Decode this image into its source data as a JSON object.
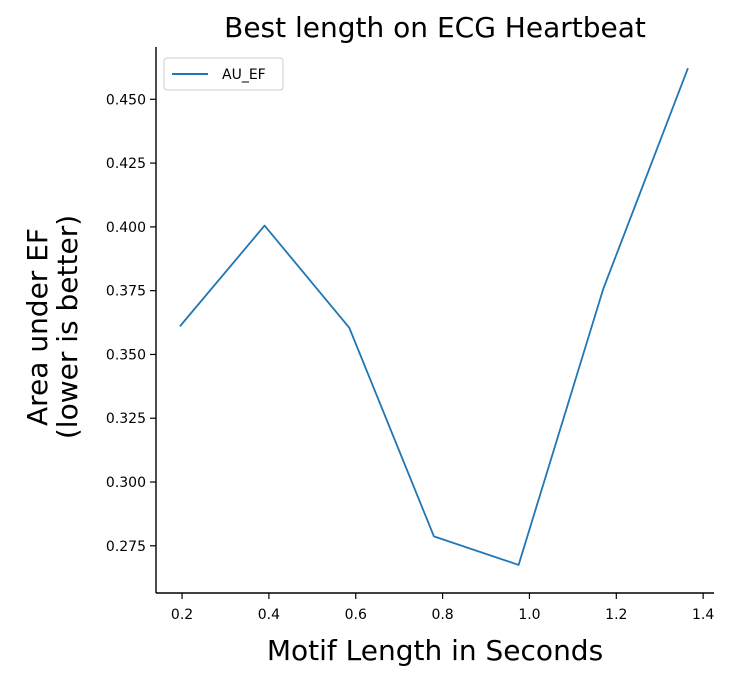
{
  "chart_data": {
    "type": "line",
    "title": "Best length on ECG Heartbeat",
    "xlabel": "Motif Length in Seconds",
    "ylabel_lines": [
      "Area under EF",
      "(lower is better)"
    ],
    "xlim": [
      0.14,
      1.425
    ],
    "ylim": [
      0.2565,
      0.4705
    ],
    "xticks": [
      0.2,
      0.4,
      0.6,
      0.8,
      1.0,
      1.2,
      1.4
    ],
    "xtick_labels": [
      "0.2",
      "0.4",
      "0.6",
      "0.8",
      "1.0",
      "1.2",
      "1.4"
    ],
    "yticks": [
      0.275,
      0.3,
      0.325,
      0.35,
      0.375,
      0.4,
      0.425,
      0.45
    ],
    "ytick_labels": [
      "0.275",
      "0.300",
      "0.325",
      "0.350",
      "0.375",
      "0.400",
      "0.425",
      "0.450"
    ],
    "legend_position": "top-left",
    "series": [
      {
        "name": "AU_EF",
        "color": "#1f77b4",
        "x": [
          0.195,
          0.39,
          0.585,
          0.78,
          0.975,
          1.17,
          1.365
        ],
        "y": [
          0.361,
          0.4005,
          0.3605,
          0.2787,
          0.2675,
          0.3757,
          0.4622
        ]
      }
    ]
  }
}
